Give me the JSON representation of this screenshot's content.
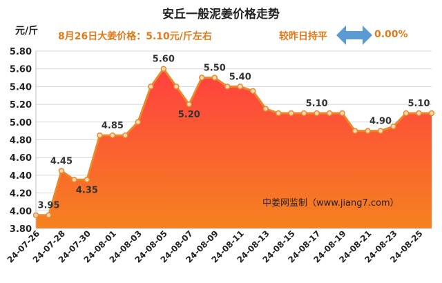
{
  "header": {
    "title": "安丘一般泥姜价格走势",
    "unit": "元/斤",
    "price_note": "8月26日大姜价格：5.10元/斤左右",
    "change_label": "较昨日持平",
    "change_value": "0.00%",
    "arrow_icon": "double-arrow-icon"
  },
  "colors": {
    "line": "#e8892b",
    "area_top": "#ff4040",
    "area_bottom": "#f5821f",
    "text_orange": "#e07a1a",
    "arrow": "#5b9bd5"
  },
  "chart_data": {
    "type": "area",
    "title": "安丘一般泥姜价格走势",
    "ylabel": "元/斤",
    "xlabel": "",
    "ylim": [
      3.8,
      5.8
    ],
    "yticks": [
      "3.80",
      "4.00",
      "4.20",
      "4.40",
      "4.60",
      "4.80",
      "5.00",
      "5.20",
      "5.40",
      "5.60",
      "5.80"
    ],
    "grid": true,
    "watermark": "中姜网监制（www.jiang7.com）",
    "x": [
      "24-07-26",
      "24-07-27",
      "24-07-28",
      "24-07-29",
      "24-07-30",
      "24-07-31",
      "24-08-01",
      "24-08-02",
      "24-08-03",
      "24-08-04",
      "24-08-05",
      "24-08-06",
      "24-08-07",
      "24-08-08",
      "24-08-09",
      "24-08-10",
      "24-08-11",
      "24-08-12",
      "24-08-13",
      "24-08-14",
      "24-08-15",
      "24-08-16",
      "24-08-17",
      "24-08-18",
      "24-08-19",
      "24-08-20",
      "24-08-21",
      "24-08-22",
      "24-08-23",
      "24-08-24",
      "24-08-25",
      "24-08-26"
    ],
    "xticks": [
      "24-07-26",
      "24-07-28",
      "24-07-30",
      "24-08-01",
      "24-08-03",
      "24-08-05",
      "24-08-07",
      "24-08-09",
      "24-08-11",
      "24-08-13",
      "24-08-15",
      "24-08-17",
      "24-08-19",
      "24-08-21",
      "24-08-23",
      "24-08-25"
    ],
    "values": [
      3.95,
      3.95,
      4.45,
      4.35,
      4.35,
      4.85,
      4.85,
      4.85,
      5.0,
      5.4,
      5.6,
      5.4,
      5.2,
      5.5,
      5.5,
      5.4,
      5.4,
      5.35,
      5.15,
      5.1,
      5.1,
      5.1,
      5.1,
      5.1,
      5.1,
      4.9,
      4.9,
      4.9,
      4.95,
      5.1,
      5.1,
      5.1
    ],
    "data_labels": [
      {
        "index": 1,
        "text": "3.95"
      },
      {
        "index": 2,
        "text": "4.45"
      },
      {
        "index": 4,
        "text": "4.35"
      },
      {
        "index": 6,
        "text": "4.85"
      },
      {
        "index": 10,
        "text": "5.60"
      },
      {
        "index": 12,
        "text": "5.20"
      },
      {
        "index": 14,
        "text": "5.50"
      },
      {
        "index": 16,
        "text": "5.40"
      },
      {
        "index": 22,
        "text": "5.10"
      },
      {
        "index": 27,
        "text": "4.90"
      },
      {
        "index": 30,
        "text": "5.10"
      }
    ]
  }
}
